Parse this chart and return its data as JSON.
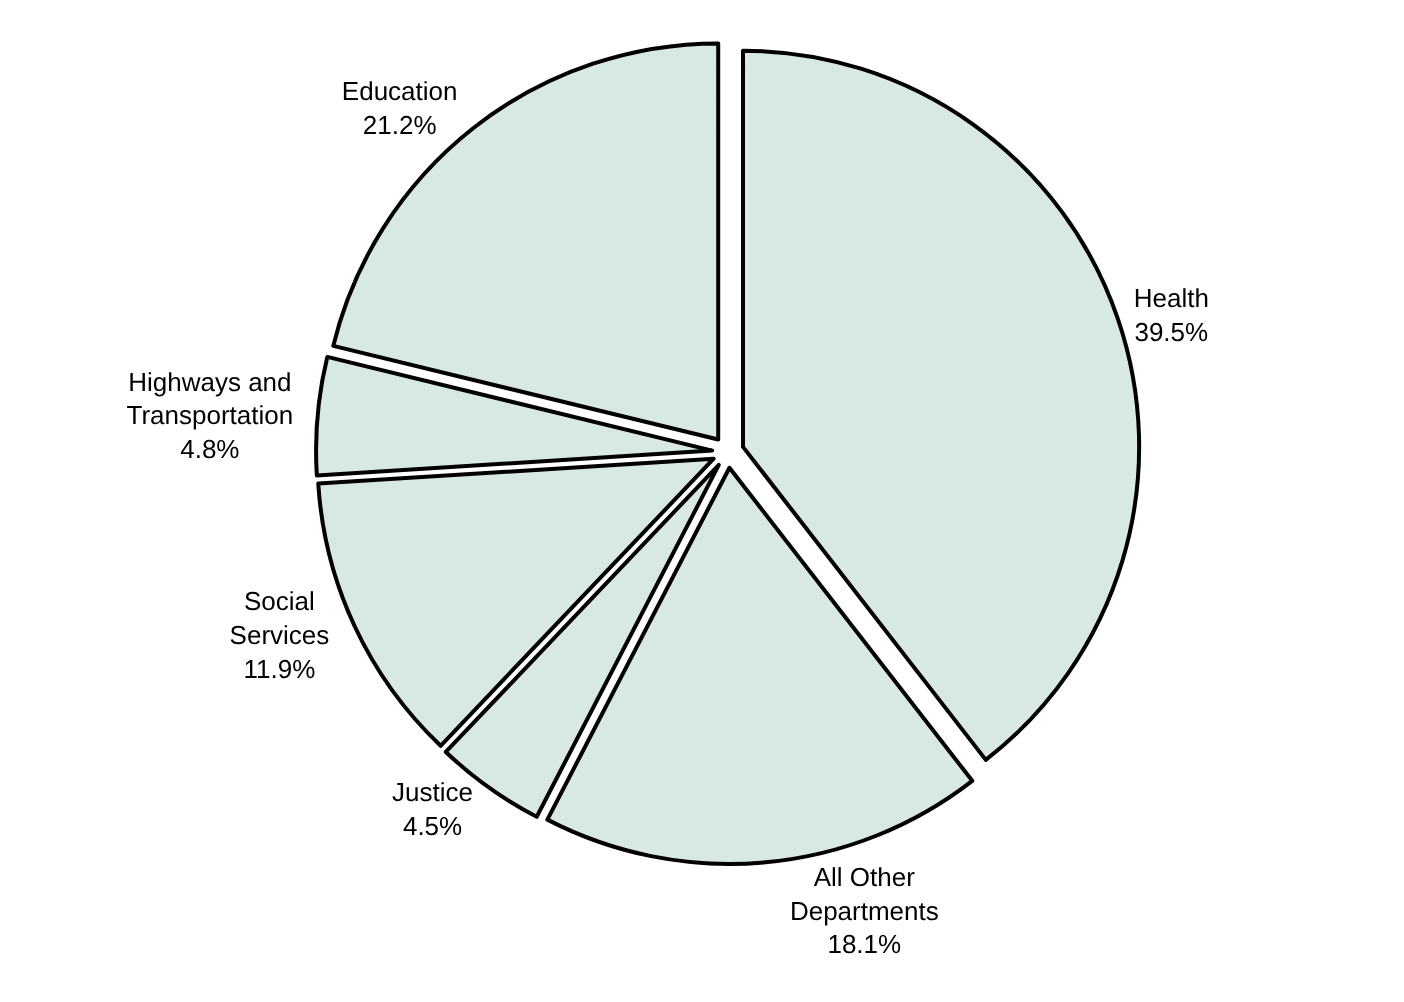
{
  "chart_data": {
    "type": "pie",
    "categories": [
      "Health",
      "All Other Departments",
      "Justice",
      "Social Services",
      "Highways and Transportation",
      "Education"
    ],
    "values": [
      39.5,
      18.1,
      4.5,
      11.9,
      4.8,
      21.2
    ],
    "value_labels": [
      "39.5%",
      "18.1%",
      "4.5%",
      "11.9%",
      "4.8%",
      "21.2%"
    ],
    "colors": [
      "#d8e9e4",
      "#d8e9e4",
      "#d8e9e4",
      "#d8e9e4",
      "#d8e9e4",
      "#d8e9e4"
    ],
    "legend": false
  }
}
